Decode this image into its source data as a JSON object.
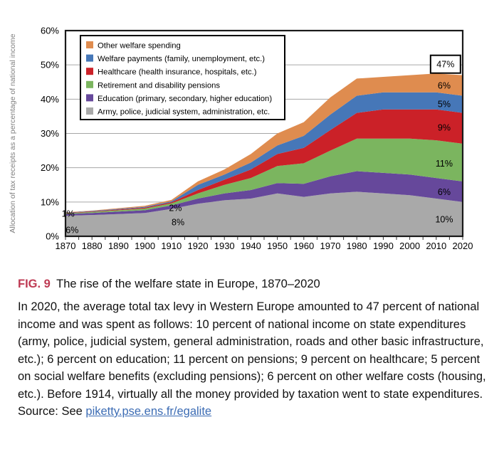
{
  "chart_data": {
    "type": "area",
    "stacked": true,
    "ylabel": "Allocation of tax receipts as a percentage of national income",
    "ylim": [
      0,
      60
    ],
    "ytick_labels": [
      "0%",
      "10%",
      "20%",
      "30%",
      "40%",
      "50%",
      "60%"
    ],
    "x": [
      1870,
      1880,
      1890,
      1900,
      1910,
      1920,
      1930,
      1940,
      1950,
      1960,
      1970,
      1980,
      1990,
      2000,
      2010,
      2020
    ],
    "xtick_labels": [
      "1870",
      "1880",
      "1890",
      "1900",
      "1910",
      "1920",
      "1930",
      "1940",
      "1950",
      "1960",
      "1970",
      "1980",
      "1990",
      "2000",
      "2010",
      "2020"
    ],
    "grid": true,
    "legend_position": "top-left-inside",
    "series": [
      {
        "id": "army",
        "name": "Army, police, judicial system, administration, etc.",
        "color": "#A9A9A9",
        "values": [
          6.0,
          6.2,
          6.5,
          6.8,
          8.0,
          9.5,
          10.5,
          11.0,
          12.5,
          11.5,
          12.5,
          13.0,
          12.5,
          12.0,
          11.0,
          10.0
        ]
      },
      {
        "id": "education",
        "name": "Education (primary, secondary, higher education)",
        "color": "#66489B",
        "values": [
          0.5,
          0.6,
          0.7,
          0.8,
          1.0,
          1.5,
          2.0,
          2.5,
          3.0,
          3.8,
          5.0,
          6.0,
          6.0,
          6.0,
          6.0,
          6.0
        ]
      },
      {
        "id": "pensions",
        "name": "Retirement and disability pensions",
        "color": "#7BB55F",
        "values": [
          0.2,
          0.3,
          0.4,
          0.5,
          0.6,
          1.5,
          2.5,
          3.5,
          5.0,
          6.0,
          7.5,
          9.5,
          10.0,
          10.5,
          11.0,
          11.0
        ]
      },
      {
        "id": "healthcare",
        "name": "Healthcare (health insurance, hospitals, etc.)",
        "color": "#CB2128",
        "values": [
          0.1,
          0.15,
          0.2,
          0.25,
          0.3,
          1.0,
          1.5,
          2.5,
          3.5,
          4.5,
          6.0,
          7.5,
          8.5,
          8.5,
          9.0,
          9.0
        ]
      },
      {
        "id": "welfare-payments",
        "name": "Welfare payments (family, unemployment, etc.)",
        "color": "#4677B8",
        "values": [
          0.1,
          0.15,
          0.2,
          0.25,
          0.3,
          1.5,
          1.5,
          2.0,
          2.5,
          3.5,
          4.5,
          5.0,
          5.0,
          5.0,
          5.0,
          5.0
        ]
      },
      {
        "id": "other-welfare",
        "name": "Other welfare spending",
        "color": "#DF8C4F",
        "values": [
          0.1,
          0.1,
          0.2,
          0.3,
          0.4,
          1.0,
          1.5,
          2.5,
          3.5,
          4.0,
          5.0,
          5.0,
          4.5,
          5.0,
          5.5,
          6.0
        ]
      }
    ],
    "annotations": [
      {
        "text": "47%",
        "year": 2013.5,
        "value": 50.2,
        "boxed": true
      },
      {
        "text": "6%",
        "year": 2013,
        "value": 44.0
      },
      {
        "text": "5%",
        "year": 2013,
        "value": 38.6
      },
      {
        "text": "9%",
        "year": 2013,
        "value": 31.8
      },
      {
        "text": "11%",
        "year": 2013,
        "value": 21.3
      },
      {
        "text": "6%",
        "year": 2013,
        "value": 13.0
      },
      {
        "text": "10%",
        "year": 2013,
        "value": 5.0
      },
      {
        "text": "1%",
        "year": 1871.0,
        "value": 6.6
      },
      {
        "text": "6%",
        "year": 1872.5,
        "value": 1.9
      },
      {
        "text": "2%",
        "year": 1911.5,
        "value": 8.3
      },
      {
        "text": "8%",
        "year": 1912.5,
        "value": 4.2
      }
    ]
  },
  "caption": {
    "fig_label": "FIG. 9",
    "title": "The rise of the welfare state in Europe, 1870–2020",
    "body": "In 2020, the average total tax levy in Western Europe amounted to 47 percent of national income and was spent as follows: 10 percent of national income on state expenditures (army, police, judicial system, general administration, roads and other basic infrastructure, etc.); 6 percent on education; 11 percent on pensions; 9 percent on healthcare; 5 percent on social welfare benefits (excluding pensions); 6 percent on other welfare costs (housing, etc.). Before 1914, virtually all the money provided by taxation went to state expenditures. Source: See",
    "link": "piketty.pse.ens.fr/egalite"
  },
  "colors": {
    "fig_label_red": "#BE3A53",
    "link_blue": "#3C6CB4",
    "axis_label_gray": "#7F7F7F",
    "gridline_gray": "#A6A6A6",
    "plot_border": "#1a1a1a"
  }
}
